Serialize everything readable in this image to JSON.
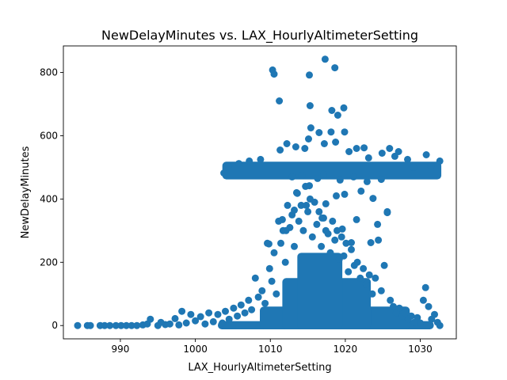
{
  "chart_data": {
    "type": "scatter",
    "title": "NewDelayMinutes vs. LAX_HourlyAltimeterSetting",
    "xlabel": "LAX_HourlyAltimeterSetting",
    "ylabel": "NewDelayMinutes",
    "xlim": [
      982.4,
      1034.8
    ],
    "ylim": [
      -42,
      884
    ],
    "x_ticks": [
      990,
      1000,
      1010,
      1020,
      1030
    ],
    "y_ticks": [
      0,
      200,
      400,
      600,
      800
    ],
    "grid": false,
    "marker_color": "#1f77b4",
    "series": [
      {
        "points": [
          [
            984.3,
            0
          ],
          [
            985.6,
            0
          ],
          [
            986.0,
            0
          ],
          [
            987.3,
            0
          ],
          [
            987.9,
            0
          ],
          [
            988.6,
            0
          ],
          [
            989.4,
            0
          ],
          [
            990.1,
            0
          ],
          [
            990.8,
            0
          ],
          [
            991.5,
            0
          ],
          [
            992.2,
            0
          ],
          [
            993.0,
            2
          ],
          [
            993.6,
            5
          ],
          [
            994.0,
            20
          ],
          [
            995.0,
            0
          ],
          [
            995.4,
            10
          ],
          [
            996.0,
            3
          ],
          [
            996.6,
            5
          ],
          [
            997.3,
            22
          ],
          [
            997.8,
            2
          ],
          [
            998.2,
            45
          ],
          [
            998.8,
            8
          ],
          [
            999.4,
            35
          ],
          [
            1000.0,
            15
          ],
          [
            1000.7,
            28
          ],
          [
            1001.3,
            5
          ],
          [
            1001.8,
            40
          ],
          [
            1002.4,
            12
          ],
          [
            1003.0,
            35
          ],
          [
            1003.6,
            8
          ],
          [
            1004.0,
            45
          ],
          [
            1004.5,
            20
          ],
          [
            1005.1,
            55
          ],
          [
            1005.6,
            30
          ],
          [
            1006.1,
            65
          ],
          [
            1006.6,
            40
          ],
          [
            1007.1,
            80
          ],
          [
            1007.5,
            50
          ],
          [
            1008.0,
            150
          ],
          [
            1008.4,
            90
          ],
          [
            1008.9,
            110
          ],
          [
            1009.3,
            70
          ],
          [
            1009.6,
            260
          ],
          [
            1009.9,
            180
          ],
          [
            1010.2,
            140
          ],
          [
            1010.5,
            230
          ],
          [
            1010.8,
            100
          ],
          [
            1011.1,
            330
          ],
          [
            1011.4,
            260
          ],
          [
            1011.7,
            300
          ],
          [
            1012.0,
            200
          ],
          [
            1012.3,
            380
          ],
          [
            1012.6,
            310
          ],
          [
            1012.9,
            350
          ],
          [
            1013.2,
            250
          ],
          [
            1013.5,
            420
          ],
          [
            1013.8,
            330
          ],
          [
            1014.1,
            380
          ],
          [
            1014.4,
            300
          ],
          [
            1014.7,
            440
          ],
          [
            1015.0,
            360
          ],
          [
            1015.3,
            400
          ],
          [
            1015.6,
            280
          ],
          [
            1015.9,
            390
          ],
          [
            1016.2,
            320
          ],
          [
            1016.5,
            360
          ],
          [
            1016.8,
            250
          ],
          [
            1017.1,
            340
          ],
          [
            1017.4,
            300
          ],
          [
            1017.7,
            290
          ],
          [
            1018.0,
            230
          ],
          [
            1018.3,
            330
          ],
          [
            1018.6,
            270
          ],
          [
            1018.9,
            300
          ],
          [
            1019.2,
            210
          ],
          [
            1019.5,
            280
          ],
          [
            1019.8,
            220
          ],
          [
            1020.1,
            260
          ],
          [
            1020.4,
            170
          ],
          [
            1020.8,
            240
          ],
          [
            1021.2,
            190
          ],
          [
            1021.6,
            200
          ],
          [
            1022.0,
            150
          ],
          [
            1022.4,
            180
          ],
          [
            1022.8,
            130
          ],
          [
            1023.2,
            160
          ],
          [
            1023.6,
            100
          ],
          [
            1024.0,
            150
          ],
          [
            1024.4,
            270
          ],
          [
            1024.8,
            110
          ],
          [
            1025.2,
            190
          ],
          [
            1025.6,
            360
          ],
          [
            1026.0,
            80
          ],
          [
            1026.4,
            60
          ],
          [
            1026.8,
            40
          ],
          [
            1027.2,
            55
          ],
          [
            1027.6,
            30
          ],
          [
            1028.0,
            40
          ],
          [
            1028.4,
            20
          ],
          [
            1028.8,
            30
          ],
          [
            1029.2,
            10
          ],
          [
            1029.6,
            25
          ],
          [
            1030.0,
            8
          ],
          [
            1030.4,
            80
          ],
          [
            1030.7,
            120
          ],
          [
            1031.1,
            60
          ],
          [
            1031.5,
            20
          ],
          [
            1031.9,
            35
          ],
          [
            1032.3,
            10
          ],
          [
            1032.6,
            0
          ],
          [
            1011.2,
            710
          ],
          [
            1010.3,
            808
          ],
          [
            1010.5,
            795
          ],
          [
            1015.2,
            792
          ],
          [
            1017.3,
            842
          ],
          [
            1018.6,
            815
          ],
          [
            1015.3,
            695
          ],
          [
            1018.2,
            680
          ],
          [
            1019.0,
            665
          ],
          [
            1019.8,
            688
          ],
          [
            1015.4,
            625
          ],
          [
            1016.5,
            610
          ],
          [
            1018.1,
            612
          ],
          [
            1019.9,
            612
          ],
          [
            1015.1,
            590
          ],
          [
            1017.2,
            575
          ],
          [
            1012.2,
            575
          ],
          [
            1013.4,
            565
          ],
          [
            1018.7,
            580
          ],
          [
            1021.5,
            560
          ],
          [
            1022.5,
            562
          ],
          [
            1025.9,
            560
          ],
          [
            1011.3,
            555
          ],
          [
            1014.6,
            560
          ],
          [
            1020.5,
            550
          ],
          [
            1027.1,
            550
          ],
          [
            1030.8,
            540
          ],
          [
            1032.6,
            520
          ],
          [
            1031.4,
            505
          ],
          [
            1029.1,
            500
          ],
          [
            1003.8,
            482
          ],
          [
            1004.4,
            505
          ],
          [
            1005.8,
            512
          ],
          [
            1007.2,
            520
          ],
          [
            1008.7,
            525
          ],
          [
            1023.1,
            530
          ],
          [
            1024.9,
            545
          ],
          [
            1026.6,
            535
          ],
          [
            1028.3,
            525
          ],
          [
            1012.9,
            470
          ],
          [
            1014.2,
            475
          ],
          [
            1016.3,
            465
          ],
          [
            1017.1,
            478
          ],
          [
            1019.3,
            460
          ],
          [
            1021.1,
            470
          ],
          [
            1022.9,
            455
          ],
          [
            1024.8,
            462
          ],
          [
            1013.6,
            418
          ],
          [
            1015.2,
            442
          ],
          [
            1018.8,
            410
          ],
          [
            1019.9,
            415
          ],
          [
            1022.1,
            425
          ],
          [
            1023.7,
            402
          ],
          [
            1017.4,
            385
          ],
          [
            1013.2,
            365
          ],
          [
            1014.8,
            380
          ],
          [
            1016.9,
            340
          ],
          [
            1012.1,
            300
          ],
          [
            1011.6,
            335
          ],
          [
            1021.5,
            335
          ],
          [
            1024.3,
            320
          ],
          [
            1009.8,
            258
          ],
          [
            1019.6,
            305
          ],
          [
            1020.8,
            262
          ],
          [
            1023.4,
            262
          ],
          [
            1025.6,
            357
          ]
        ]
      }
    ]
  }
}
